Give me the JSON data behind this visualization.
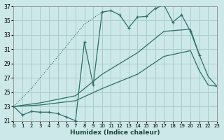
{
  "xlabel": "Humidex (Indice chaleur)",
  "bg_color": "#cce8e8",
  "grid_color": "#aacccc",
  "line_color": "#2d7068",
  "xlim": [
    0,
    23
  ],
  "ylim": [
    21,
    37
  ],
  "yticks": [
    21,
    23,
    25,
    27,
    29,
    31,
    33,
    35,
    37
  ],
  "xticks": [
    0,
    1,
    2,
    3,
    4,
    5,
    6,
    7,
    8,
    9,
    10,
    11,
    12,
    13,
    14,
    15,
    16,
    17,
    18,
    19,
    20,
    21,
    22,
    23
  ],
  "dotted_x": [
    0,
    2,
    4,
    6,
    8,
    10
  ],
  "dotted_y": [
    23.0,
    25.5,
    28.5,
    31.5,
    34.5,
    36.2
  ],
  "jagged_low_x": [
    0,
    1,
    2,
    3,
    4,
    5,
    6,
    7
  ],
  "jagged_low_y": [
    23.0,
    21.8,
    22.3,
    22.2,
    22.2,
    22.0,
    21.5,
    21.0
  ],
  "jagged_high_x": [
    7,
    8,
    9,
    10,
    11,
    12,
    13,
    14,
    15,
    16,
    17,
    18,
    19,
    20,
    21
  ],
  "jagged_high_y": [
    21.0,
    32.0,
    26.0,
    36.2,
    36.4,
    35.8,
    34.0,
    35.5,
    35.6,
    36.7,
    37.2,
    34.8,
    35.8,
    33.5,
    30.2
  ],
  "smooth_upper_x": [
    0,
    3,
    7,
    10,
    14,
    17,
    20,
    21,
    22,
    23
  ],
  "smooth_upper_y": [
    23.0,
    23.5,
    24.5,
    27.5,
    30.5,
    33.5,
    33.8,
    30.2,
    27.2,
    25.8
  ],
  "smooth_lower_x": [
    0,
    3,
    7,
    10,
    14,
    17,
    20,
    21,
    22,
    23
  ],
  "smooth_lower_y": [
    23.0,
    23.2,
    23.8,
    25.5,
    27.5,
    30.0,
    30.8,
    28.0,
    26.0,
    25.8
  ]
}
